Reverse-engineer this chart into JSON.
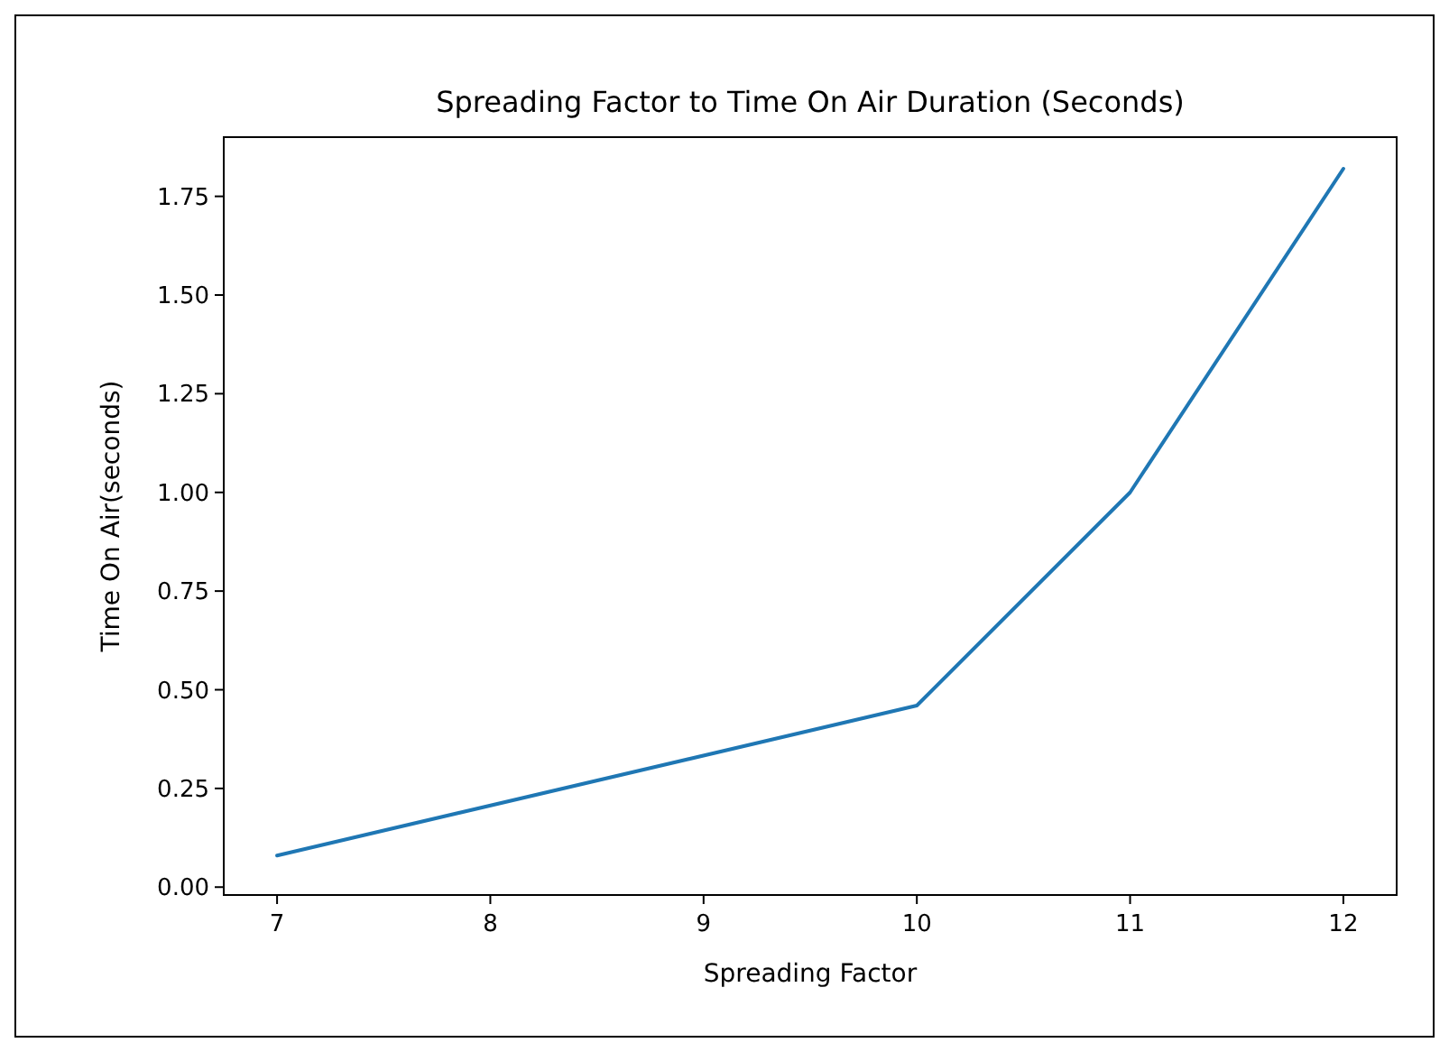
{
  "chart_data": {
    "type": "line",
    "title": "Spreading Factor to Time On Air Duration (Seconds)",
    "xlabel": "Spreading Factor",
    "ylabel": "Time On Air(seconds)",
    "x": [
      7,
      10,
      11,
      12
    ],
    "series": [
      {
        "color": "#1f77b4",
        "values": [
          0.08,
          0.46,
          1.0,
          1.82
        ]
      }
    ],
    "xlim": [
      6.75,
      12.25
    ],
    "xticks": [
      7,
      8,
      9,
      10,
      11,
      12
    ],
    "ylim": [
      -0.02,
      1.9
    ],
    "yticks": [
      {
        "value": 0,
        "label": "0.00"
      },
      {
        "value": 0.25,
        "label": "0.25"
      },
      {
        "value": 0.5,
        "label": "0.50"
      },
      {
        "value": 0.75,
        "label": "0.75"
      },
      {
        "value": 1,
        "label": "1.00"
      },
      {
        "value": 1.25,
        "label": "1.25"
      },
      {
        "value": 1.5,
        "label": "1.50"
      },
      {
        "value": 1.75,
        "label": "1.75"
      }
    ],
    "grid": false,
    "line_style": "solid",
    "marker": "none"
  }
}
